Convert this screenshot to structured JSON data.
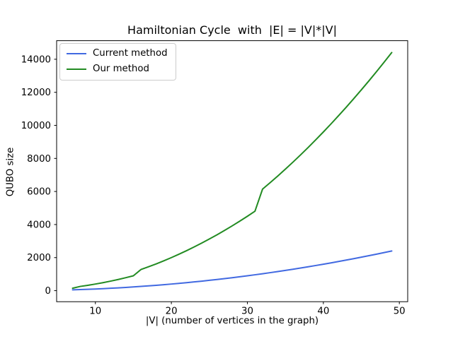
{
  "chart_data": {
    "type": "line",
    "title": "Hamiltonian Cycle  with  |E| = |V|*|V|",
    "xlabel": "|V| (number of vertices in the graph)",
    "ylabel": "QUBO size",
    "x": [
      7,
      8,
      9,
      10,
      11,
      12,
      13,
      14,
      15,
      16,
      17,
      18,
      19,
      20,
      21,
      22,
      23,
      24,
      25,
      26,
      27,
      28,
      29,
      30,
      31,
      32,
      33,
      34,
      35,
      36,
      37,
      38,
      39,
      40,
      41,
      42,
      43,
      44,
      45,
      46,
      47,
      48,
      49
    ],
    "series": [
      {
        "name": "Current method",
        "color": "#4169e1",
        "values": [
          49,
          64,
          81,
          100,
          121,
          144,
          169,
          196,
          225,
          256,
          289,
          324,
          361,
          400,
          441,
          484,
          529,
          576,
          625,
          676,
          729,
          784,
          841,
          900,
          961,
          1024,
          1089,
          1156,
          1225,
          1296,
          1369,
          1444,
          1521,
          1600,
          1681,
          1764,
          1849,
          1936,
          2025,
          2116,
          2209,
          2304,
          2401
        ]
      },
      {
        "name": "Our method",
        "color": "#228b22",
        "values": [
          147,
          256,
          324,
          400,
          484,
          576,
          676,
          784,
          900,
          1280,
          1445,
          1620,
          1805,
          2000,
          2205,
          2420,
          2645,
          2880,
          3125,
          3380,
          3645,
          3920,
          4205,
          4500,
          4805,
          6144,
          6534,
          6936,
          7350,
          7776,
          8214,
          8664,
          9126,
          9600,
          10086,
          10584,
          11094,
          11616,
          12150,
          12696,
          13254,
          13824,
          14406
        ]
      }
    ],
    "xticks": [
      10,
      20,
      30,
      40,
      50
    ],
    "yticks": [
      0,
      2000,
      4000,
      6000,
      8000,
      10000,
      12000,
      14000
    ],
    "xlim": [
      4.9,
      51.1
    ],
    "ylim": [
      -668.85,
      15123.85
    ],
    "legend_position": "upper left",
    "grid": false
  }
}
